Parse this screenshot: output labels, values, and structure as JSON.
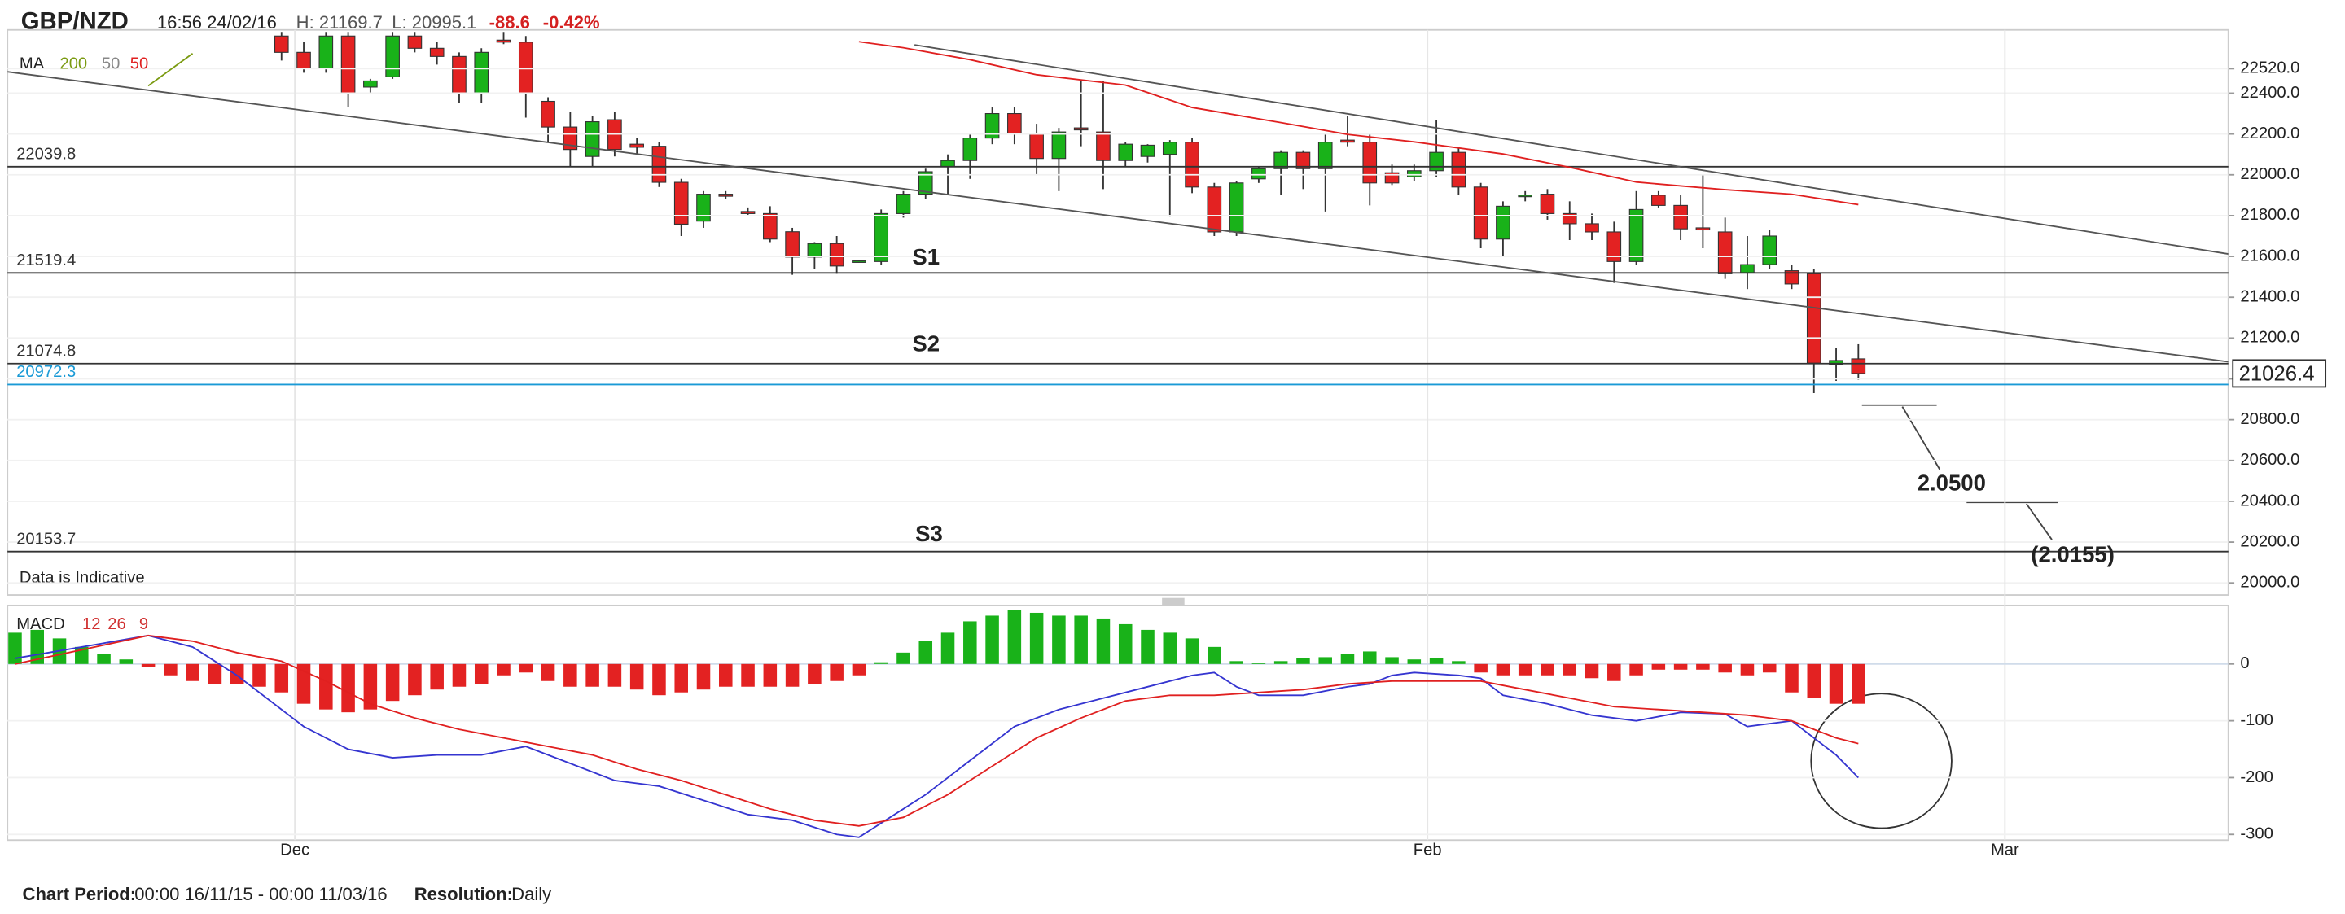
{
  "header": {
    "symbol": "GBP/NZD",
    "time": "16:56 24/02/16",
    "high": "H: 21169.7",
    "low": "L: 20995.1",
    "change": "-88.6",
    "change_pct": "-0.42%"
  },
  "footer": {
    "period_label": "Chart Period:",
    "period": "00:00 16/11/15 - 00:00 11/03/16",
    "resolution_label": "Resolution:",
    "resolution": "Daily"
  },
  "chart_data": [
    {
      "type": "candlestick",
      "legend_title": "MA",
      "note": "Data is Indicative",
      "up_color": "#19b219",
      "down_color": "#e32222",
      "x": [
        12,
        13,
        14,
        15,
        16,
        17,
        18,
        19,
        20,
        21,
        22,
        23,
        24,
        25,
        26,
        27,
        28,
        29,
        30,
        31,
        32,
        33,
        34,
        35,
        36,
        37,
        38,
        39,
        40,
        41,
        42,
        43,
        44,
        45,
        46,
        47,
        48,
        49,
        50,
        51,
        52,
        53,
        54,
        55,
        56,
        57,
        58,
        59,
        60,
        61,
        62,
        63,
        64,
        65,
        66,
        67,
        68,
        69,
        70,
        71,
        72,
        73,
        74,
        75,
        76,
        77,
        78,
        79,
        80,
        81,
        82,
        83
      ],
      "open": [
        22680,
        22600,
        22520,
        22680,
        22430,
        22480,
        22680,
        22620,
        22580,
        22400,
        22660,
        22650,
        22360,
        22234,
        22090,
        22270,
        22150,
        22140,
        21963,
        21773,
        21905,
        21820,
        21810,
        21721,
        21597,
        21663,
        21575,
        21575,
        21810,
        21905,
        22040,
        22070,
        22180,
        22300,
        22200,
        22080,
        22230,
        22210,
        22070,
        22090,
        22100,
        22160,
        21940,
        21720,
        21980,
        22030,
        22110,
        22030,
        22170,
        22160,
        22010,
        21990,
        22020,
        22110,
        21940,
        21685,
        21895,
        21905,
        21810,
        21760,
        21720,
        21575,
        21900,
        21850,
        21740,
        21720,
        21520,
        21560,
        21530,
        21515,
        21070,
        21098
      ],
      "high": [
        22700,
        22650,
        22700,
        22700,
        22470,
        22700,
        22700,
        22650,
        22600,
        22620,
        22700,
        22680,
        22380,
        22308,
        22290,
        22308,
        22180,
        22160,
        21980,
        21920,
        21920,
        21840,
        21846,
        21740,
        21670,
        21700,
        21580,
        21830,
        21920,
        22030,
        22100,
        22200,
        22330,
        22330,
        22250,
        22230,
        22460,
        22460,
        22160,
        22150,
        22170,
        22180,
        21960,
        21970,
        22040,
        22120,
        22120,
        22200,
        22290,
        22200,
        22050,
        22050,
        22270,
        22130,
        21960,
        21870,
        21920,
        21930,
        21870,
        21810,
        21770,
        21920,
        21920,
        21900,
        22000,
        21790,
        21700,
        21730,
        21560,
        21540,
        21150,
        21169.7
      ],
      "low": [
        22560,
        22500,
        22500,
        22330,
        22400,
        22470,
        22600,
        22540,
        22350,
        22350,
        22640,
        22280,
        22161,
        22037,
        22040,
        22090,
        22100,
        21940,
        21700,
        21740,
        21880,
        21800,
        21670,
        21510,
        21540,
        21515,
        21570,
        21560,
        21790,
        21880,
        21900,
        21980,
        22150,
        22150,
        22000,
        21920,
        22140,
        21930,
        22040,
        22060,
        21795,
        21910,
        21700,
        21700,
        21960,
        21900,
        21930,
        21820,
        22140,
        21850,
        21950,
        21970,
        21990,
        21900,
        21640,
        21600,
        21870,
        21780,
        21680,
        21680,
        21470,
        21560,
        21840,
        21680,
        21640,
        21490,
        21440,
        21540,
        21440,
        20930,
        20990,
        20995.1
      ],
      "close": [
        22600,
        22520,
        22680,
        22400,
        22460,
        22680,
        22620,
        22580,
        22400,
        22600,
        22650,
        22400,
        22234,
        22124,
        22260,
        22124,
        22135,
        21963,
        21758,
        21905,
        21895,
        21810,
        21685,
        21597,
        21663,
        21553,
        21578,
        21810,
        21905,
        22015,
        22070,
        22180,
        22300,
        22200,
        22080,
        22210,
        22220,
        22070,
        22150,
        22145,
        22160,
        21940,
        21720,
        21960,
        22030,
        22110,
        22030,
        22160,
        22160,
        21960,
        21960,
        22020,
        22110,
        21940,
        21685,
        21846,
        21900,
        21810,
        21760,
        21720,
        21575,
        21830,
        21850,
        21735,
        21730,
        21515,
        21560,
        21700,
        21465,
        21077,
        21090,
        21026.4
      ],
      "series": [
        {
          "name": "200",
          "color": "#7a9a10",
          "x": [
            6,
            8
          ],
          "values": [
            22436,
            22594
          ]
        },
        {
          "name": "50",
          "color": "#888888"
        },
        {
          "name": "50",
          "color": "#e02020",
          "x": [
            38,
            40,
            43,
            46,
            50,
            53,
            57,
            60,
            63,
            67,
            70,
            73,
            77,
            80,
            83
          ],
          "values": [
            22652,
            22623,
            22564,
            22490,
            22440,
            22330,
            22256,
            22198,
            22161,
            22102,
            22037,
            21964,
            21927,
            21905,
            21854
          ]
        }
      ],
      "levels": [
        {
          "value": 22039.8,
          "color": "#333333"
        },
        {
          "value": 21519.4,
          "color": "#333333"
        },
        {
          "value": 21074.8,
          "color": "#333333"
        },
        {
          "value": 20972.3,
          "color": "#1a9ad6"
        },
        {
          "value": 20153.7,
          "color": "#333333"
        }
      ],
      "trendlines": [
        {
          "x": [
            -0.34,
            99.66
          ],
          "values": [
            22505,
            21084
          ]
        },
        {
          "x": [
            40.5,
            99.66
          ],
          "values": [
            22637,
            21612
          ]
        }
      ],
      "annotations": [
        "S1",
        "S2",
        "S3",
        "2.0500",
        "(2.0155)"
      ],
      "xlim": [
        -0.34,
        99.66
      ],
      "xticks": [
        {
          "value": 12.6,
          "label": "Dec"
        },
        {
          "value": 63.6,
          "label": "Feb"
        },
        {
          "value": 89.6,
          "label": "Mar"
        }
      ],
      "ylim": [
        19941,
        22710
      ],
      "yticks": [
        {
          "value": 22520,
          "label": "22520.0"
        },
        {
          "value": 22400,
          "label": "22400.0"
        },
        {
          "value": 22200,
          "label": "22200.0"
        },
        {
          "value": 22000,
          "label": "22000.0"
        },
        {
          "value": 21800,
          "label": "21800.0"
        },
        {
          "value": 21600,
          "label": "21600.0"
        },
        {
          "value": 21400,
          "label": "21400.0"
        },
        {
          "value": 21200,
          "label": "21200.0"
        },
        {
          "value": 21000,
          "label": "21000.0"
        },
        {
          "value": 20800,
          "label": "20800.0"
        },
        {
          "value": 20600,
          "label": "20600.0"
        },
        {
          "value": 20400,
          "label": "20400.0"
        },
        {
          "value": 20200,
          "label": "20200.0"
        },
        {
          "value": 20000,
          "label": "20000.0"
        }
      ]
    },
    {
      "type": "macd",
      "title": "MACD",
      "params": [
        12,
        26,
        9
      ],
      "up_color": "#19b219",
      "down_color": "#e32222",
      "histogram": [
        55,
        60,
        45,
        30,
        18,
        8,
        -5,
        -20,
        -30,
        -35,
        -35,
        -40,
        -50,
        -70,
        -80,
        -85,
        -80,
        -65,
        -55,
        -45,
        -40,
        -35,
        -20,
        -15,
        -30,
        -40,
        -40,
        -40,
        -45,
        -55,
        -50,
        -45,
        -40,
        -40,
        -40,
        -40,
        -35,
        -30,
        -20,
        3,
        20,
        40,
        55,
        75,
        85,
        95,
        90,
        85,
        85,
        80,
        70,
        60,
        55,
        45,
        30,
        5,
        2,
        5,
        10,
        12,
        18,
        22,
        12,
        8,
        10,
        5,
        -15,
        -20,
        -20,
        -20,
        -20,
        -25,
        -30,
        -20,
        -10,
        -10,
        -10,
        -15,
        -20,
        -15,
        -50,
        -60,
        -70,
        -70
      ],
      "series": [
        {
          "color": "#3535d0",
          "x": [
            0,
            3,
            6,
            8,
            10,
            13,
            15,
            17,
            19,
            21,
            23,
            25,
            27,
            29,
            31,
            33,
            35,
            37,
            38,
            39,
            41,
            43,
            45,
            47,
            49,
            51,
            53,
            54,
            55,
            56,
            58,
            60,
            61,
            62,
            63,
            65,
            66,
            67,
            69,
            71,
            73,
            75,
            77,
            78,
            80,
            82,
            83
          ],
          "values": [
            10,
            30,
            50,
            30,
            -20,
            -110,
            -150,
            -165,
            -160,
            -160,
            -145,
            -175,
            -205,
            -215,
            -240,
            -265,
            -275,
            -300,
            -305,
            -280,
            -230,
            -170,
            -110,
            -80,
            -60,
            -40,
            -20,
            -15,
            -40,
            -55,
            -55,
            -40,
            -35,
            -20,
            -15,
            -20,
            -25,
            -55,
            -70,
            -90,
            -100,
            -85,
            -88,
            -110,
            -100,
            -160,
            -200
          ]
        },
        {
          "color": "#e02020",
          "x": [
            0,
            3,
            6,
            8,
            10,
            12,
            14,
            16,
            18,
            20,
            22,
            24,
            26,
            28,
            30,
            32,
            34,
            36,
            38,
            40,
            42,
            44,
            46,
            48,
            50,
            52,
            54,
            56,
            58,
            60,
            62,
            64,
            66,
            68,
            70,
            72,
            74,
            76,
            78,
            80,
            82,
            83
          ],
          "values": [
            0,
            25,
            50,
            40,
            20,
            5,
            -30,
            -70,
            -95,
            -115,
            -130,
            -145,
            -160,
            -185,
            -205,
            -230,
            -255,
            -275,
            -285,
            -270,
            -230,
            -180,
            -130,
            -95,
            -65,
            -55,
            -55,
            -50,
            -45,
            -35,
            -30,
            -30,
            -30,
            -45,
            -60,
            -75,
            -80,
            -85,
            -90,
            -100,
            -130,
            -140
          ]
        }
      ],
      "xlim": [
        -0.34,
        99.66
      ],
      "ylim": [
        -310,
        103
      ],
      "yticks": [
        0,
        -100,
        -200,
        -300
      ]
    }
  ]
}
